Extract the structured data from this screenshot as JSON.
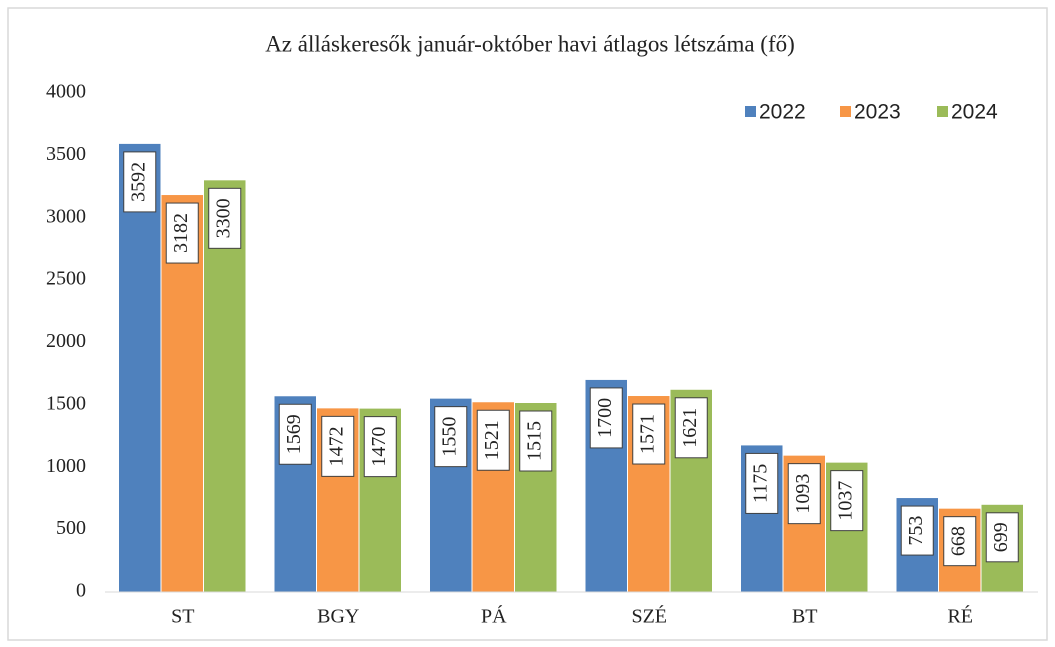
{
  "chart_data": {
    "type": "bar",
    "title": "Az álláskeresők január-október havi átlagos létszáma (fő)",
    "categories": [
      "ST",
      "BGY",
      "PÁ",
      "SZÉ",
      "BT",
      "RÉ"
    ],
    "series": [
      {
        "name": "2022",
        "color": "#4f81bd",
        "values": [
          3592,
          1569,
          1550,
          1700,
          1175,
          753
        ]
      },
      {
        "name": "2023",
        "color": "#f79646",
        "values": [
          3182,
          1472,
          1521,
          1571,
          1093,
          668
        ]
      },
      {
        "name": "2024",
        "color": "#9bbb59",
        "values": [
          3300,
          1470,
          1515,
          1621,
          1037,
          699
        ]
      }
    ],
    "ylim": [
      0,
      4000
    ],
    "yticks": [
      0,
      500,
      1000,
      1500,
      2000,
      2500,
      3000,
      3500,
      4000
    ],
    "grid": false,
    "legend": "top-right",
    "data_labels": true
  }
}
